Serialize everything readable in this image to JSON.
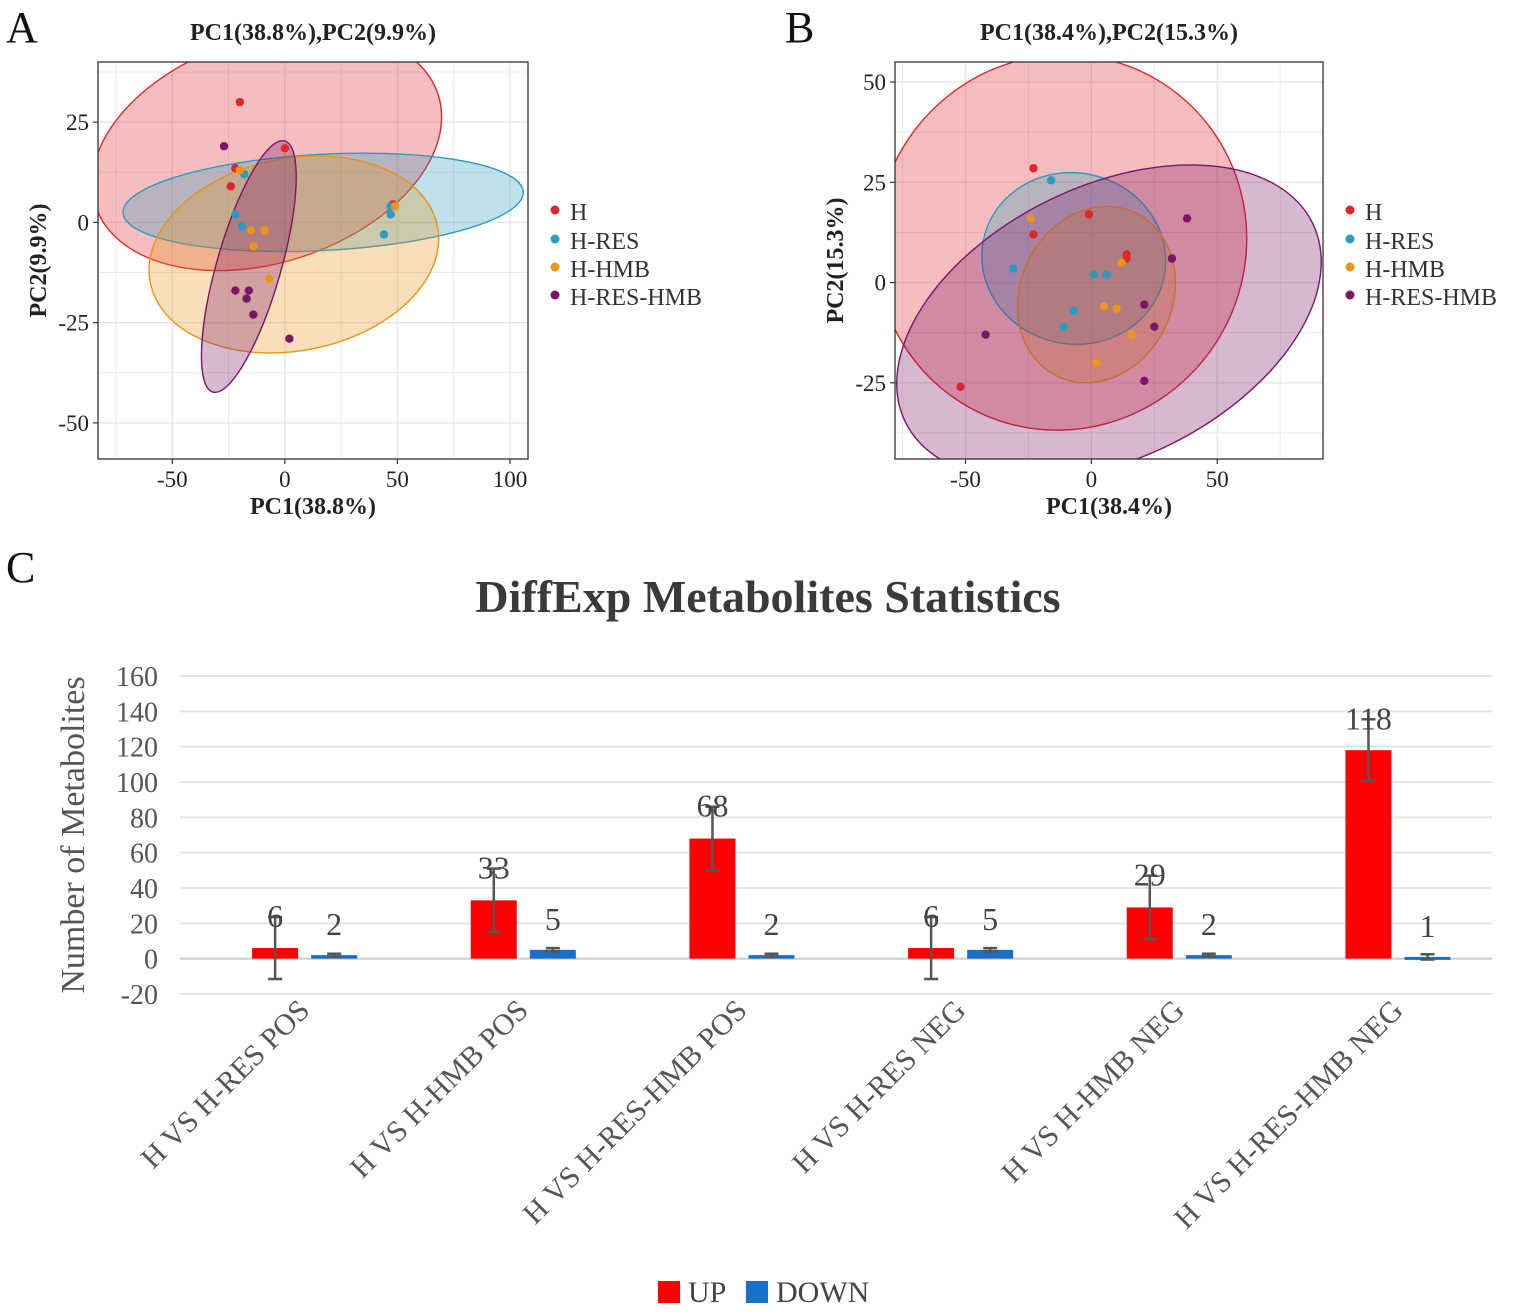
{
  "panels": {
    "a_label": "A",
    "b_label": "B",
    "c_label": "C"
  },
  "legend_pca": {
    "groups": [
      "H",
      "H-RES",
      "H-HMB",
      "H-RES-HMB"
    ],
    "colors": [
      "#e0262c",
      "#2a9cc0",
      "#e8951a",
      "#7a1568"
    ]
  },
  "chart_data": [
    {
      "type": "scatter",
      "panel": "A",
      "title": "PC1(38.8%),PC2(9.9%)",
      "xlabel": "PC1(38.8%)",
      "ylabel": "PC2(9.9%)",
      "xlim": [
        -83,
        108
      ],
      "ylim": [
        -59,
        40
      ],
      "xticks": [
        -50,
        0,
        50,
        100
      ],
      "yticks": [
        25,
        0,
        -25,
        -50
      ],
      "grid": true,
      "legend_position": "right",
      "series": [
        {
          "name": "H",
          "color": "#e0262c",
          "points": [
            [
              -20,
              30
            ],
            [
              0,
              18.5
            ],
            [
              -22,
              13.5
            ],
            [
              -24,
              9
            ],
            [
              48,
              4.5
            ]
          ],
          "ellipse": {
            "center": [
              -8,
              18
            ],
            "rx": 80,
            "ry": 28,
            "angle": -18
          }
        },
        {
          "name": "H-RES",
          "color": "#2a9cc0",
          "points": [
            [
              -18,
              12
            ],
            [
              -22,
              2
            ],
            [
              -19,
              -1
            ],
            [
              44,
              -3
            ],
            [
              47,
              2
            ],
            [
              47,
              4
            ]
          ],
          "ellipse": {
            "center": [
              17,
              5
            ],
            "rx": 89,
            "ry": 12,
            "angle": -3
          }
        },
        {
          "name": "H-HMB",
          "color": "#e8951a",
          "points": [
            [
              -20,
              13
            ],
            [
              -15,
              -2
            ],
            [
              -9,
              -2
            ],
            [
              -14,
              -6
            ],
            [
              -7,
              -14
            ],
            [
              49,
              4
            ]
          ],
          "ellipse": {
            "center": [
              4,
              -8
            ],
            "rx": 65,
            "ry": 24,
            "angle": -11
          }
        },
        {
          "name": "H-RES-HMB",
          "color": "#7a1568",
          "points": [
            [
              -27,
              19
            ],
            [
              -22,
              -17
            ],
            [
              -16,
              -17
            ],
            [
              -17,
              -19
            ],
            [
              -14,
              -23
            ],
            [
              2,
              -29
            ]
          ],
          "ellipse": {
            "center": [
              -16,
              -11
            ],
            "rx": 58,
            "ry": 8,
            "angle": 106
          }
        }
      ]
    },
    {
      "type": "scatter",
      "panel": "B",
      "title": "PC1(38.4%),PC2(15.3%)",
      "xlabel": "PC1(38.4%)",
      "ylabel": "PC2(15.3%)",
      "xlim": [
        -78,
        92
      ],
      "ylim": [
        -44,
        55
      ],
      "xticks": [
        -50,
        0,
        50
      ],
      "yticks": [
        50,
        25,
        0,
        -25
      ],
      "grid": true,
      "legend_position": "right",
      "series": [
        {
          "name": "H",
          "color": "#e0262c",
          "points": [
            [
              -23,
              28.5
            ],
            [
              -23,
              12
            ],
            [
              -1,
              17
            ],
            [
              14,
              6
            ],
            [
              14,
              7
            ],
            [
              -52,
              -26
            ]
          ],
          "ellipse": {
            "center": [
              -12,
              10
            ],
            "rx": 75,
            "ry": 46,
            "angle": -60
          }
        },
        {
          "name": "H-RES",
          "color": "#2a9cc0",
          "points": [
            [
              -16,
              25.5
            ],
            [
              -31,
              3.5
            ],
            [
              1,
              2
            ],
            [
              6,
              2
            ],
            [
              -7,
              -7
            ],
            [
              -11,
              -11
            ]
          ],
          "ellipse": {
            "center": [
              -7,
              6
            ],
            "rx": 34,
            "ry": 23,
            "angle": -78
          }
        },
        {
          "name": "H-HMB",
          "color": "#e8951a",
          "points": [
            [
              -24,
              16
            ],
            [
              12,
              5
            ],
            [
              5,
              -6
            ],
            [
              10,
              -6.5
            ],
            [
              16,
              -13
            ],
            [
              2,
              -20
            ]
          ],
          "ellipse": {
            "center": [
              2,
              -3
            ],
            "rx": 36,
            "ry": 19,
            "angle": -65
          }
        },
        {
          "name": "H-RES-HMB",
          "color": "#7a1568",
          "points": [
            [
              38,
              16
            ],
            [
              32,
              6
            ],
            [
              21,
              -5.5
            ],
            [
              25,
              -11
            ],
            [
              -42,
              -13
            ],
            [
              21,
              -24.5
            ]
          ],
          "ellipse": {
            "center": [
              7,
              -10
            ],
            "rx": 90,
            "ry": 34,
            "angle": -26
          }
        }
      ]
    },
    {
      "type": "bar",
      "panel": "C",
      "title": "DiffExp Metabolites Statistics",
      "xlabel": "",
      "ylabel": "Number of Metabolites",
      "ylim": [
        -20,
        160
      ],
      "yticks": [
        160,
        140,
        120,
        100,
        80,
        60,
        40,
        20,
        0,
        -20
      ],
      "grid": true,
      "legend_position": "bottom",
      "categories": [
        "H VS H-RES POS",
        "H VS H-HMB POS",
        "H VS H-RES-HMB POS",
        "H VS H-RES NEG",
        "H VS H-HMB NEG",
        "H VS H-RES-HMB NEG"
      ],
      "series": [
        {
          "name": "UP",
          "color": "#ff0000",
          "values": [
            6,
            33,
            68,
            6,
            29,
            118
          ],
          "error": [
            17.5,
            18,
            18,
            17.5,
            18,
            17.5
          ]
        },
        {
          "name": "DOWN",
          "color": "#1a6fc9",
          "values": [
            2,
            5,
            2,
            5,
            2,
            1
          ],
          "error": [
            0.8,
            1,
            0.8,
            1,
            0.8,
            1.5
          ]
        }
      ]
    }
  ]
}
